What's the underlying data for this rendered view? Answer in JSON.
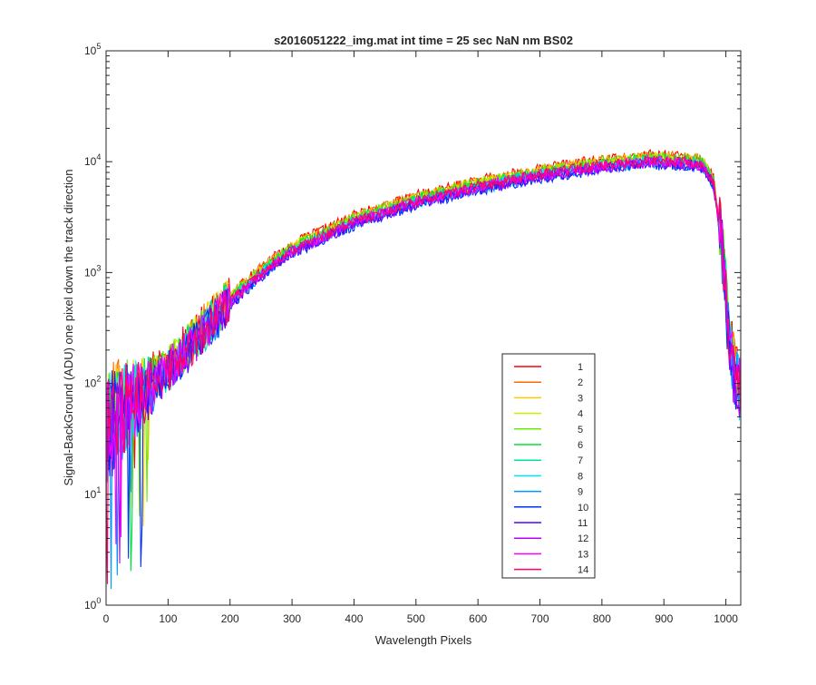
{
  "chart_data": {
    "type": "line",
    "title": "s2016051222_img.mat int time = 25 sec  NaN nm BS02",
    "xlabel": "Wavelength Pixels",
    "ylabel": "Signal-BackGround (ADU) one pixel down the track direction",
    "xlim": [
      0,
      1024
    ],
    "ylim": [
      1,
      100000
    ],
    "yscale": "log",
    "grid": false,
    "legend_position": "lower-right",
    "x_ticks": [
      "0",
      "100",
      "200",
      "300",
      "400",
      "500",
      "600",
      "700",
      "800",
      "900",
      "1000"
    ],
    "x_tick_values": [
      0,
      100,
      200,
      300,
      400,
      500,
      600,
      700,
      800,
      900,
      1000
    ],
    "y_tick_values": [
      1,
      10,
      100,
      1000,
      10000,
      100000
    ],
    "y_tick_base": "10",
    "y_tick_exponents": [
      "0",
      "1",
      "2",
      "3",
      "4",
      "5"
    ],
    "envelope": {
      "x": [
        0,
        10,
        30,
        50,
        70,
        100,
        150,
        200,
        250,
        300,
        400,
        500,
        600,
        700,
        800,
        850,
        880,
        920,
        950,
        965,
        980,
        995,
        1005,
        1015,
        1024
      ],
      "y": [
        35,
        45,
        60,
        75,
        95,
        130,
        270,
        550,
        1000,
        1600,
        2900,
        4400,
        6000,
        7700,
        9300,
        9800,
        10300,
        10000,
        9900,
        9000,
        6500,
        1500,
        250,
        110,
        90
      ]
    },
    "series": [
      {
        "name": "1",
        "color": "#ff0000",
        "scale": 1.12
      },
      {
        "name": "2",
        "color": "#ff6a00",
        "scale": 1.1
      },
      {
        "name": "3",
        "color": "#ffc800",
        "scale": 1.07
      },
      {
        "name": "4",
        "color": "#c8f000",
        "scale": 1.05
      },
      {
        "name": "5",
        "color": "#66ee00",
        "scale": 1.08
      },
      {
        "name": "6",
        "color": "#00e03c",
        "scale": 1.04
      },
      {
        "name": "7",
        "color": "#00e0a0",
        "scale": 1.0
      },
      {
        "name": "8",
        "color": "#00e6ff",
        "scale": 0.97
      },
      {
        "name": "9",
        "color": "#0096ff",
        "scale": 0.95
      },
      {
        "name": "10",
        "color": "#0032ff",
        "scale": 0.92
      },
      {
        "name": "11",
        "color": "#5000ff",
        "scale": 0.94
      },
      {
        "name": "12",
        "color": "#b400ff",
        "scale": 0.96
      },
      {
        "name": "13",
        "color": "#ff00ff",
        "scale": 0.99
      },
      {
        "name": "14",
        "color": "#ff0064",
        "scale": 1.0
      }
    ]
  }
}
